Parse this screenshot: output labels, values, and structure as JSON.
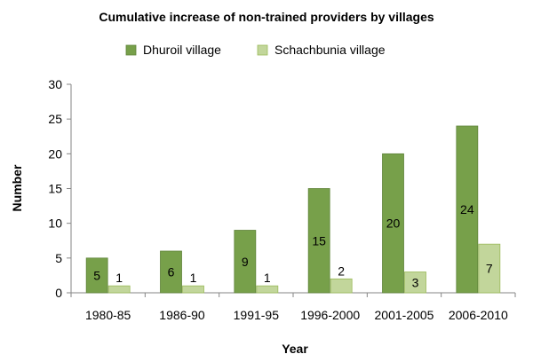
{
  "chart_data": {
    "type": "bar",
    "title": "Cumulative increase of non-trained providers by villages",
    "xlabel": "Year",
    "ylabel": "Number",
    "categories": [
      "1980-85",
      "1986-90",
      "1991-95",
      "1996-2000",
      "2001-2005",
      "2006-2010"
    ],
    "series": [
      {
        "name": "Dhuroil village",
        "values": [
          5,
          6,
          9,
          15,
          20,
          24
        ],
        "color": "#77a04a"
      },
      {
        "name": "Schachbunia village",
        "values": [
          1,
          1,
          1,
          2,
          3,
          7
        ],
        "color": "#c2d69b"
      }
    ],
    "ylim": [
      0,
      30
    ],
    "yticks": [
      0,
      5,
      10,
      15,
      20,
      25,
      30
    ],
    "legend": "top",
    "grid": false,
    "data_labels": true
  }
}
